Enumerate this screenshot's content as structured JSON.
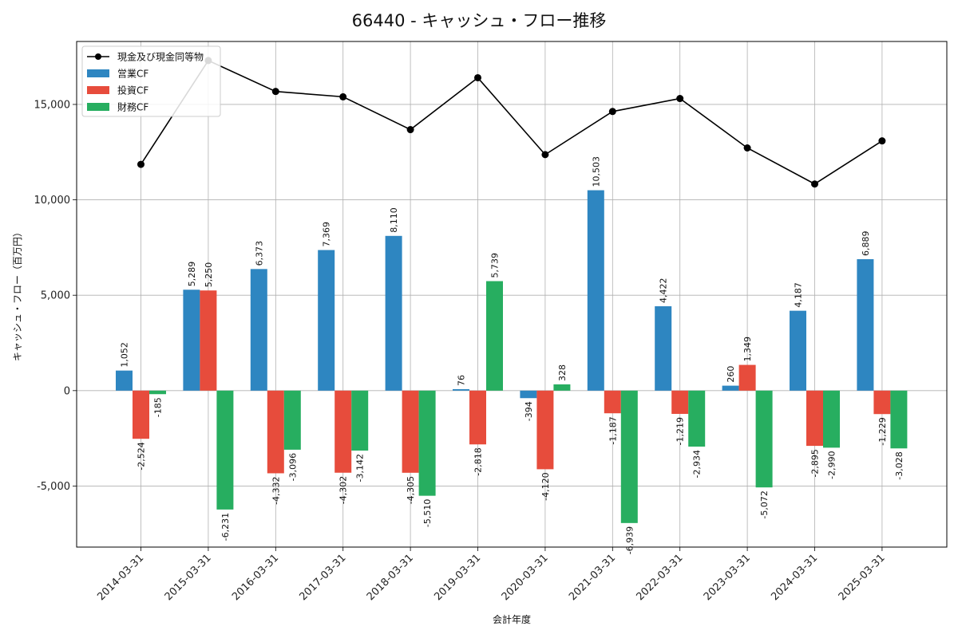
{
  "chart_data": {
    "type": "bar",
    "title": "66440 - キャッシュ・フロー推移",
    "xlabel": "会計年度",
    "ylabel": "キャッシュ・フロー（百万円）",
    "ylim": [
      -8200,
      18300
    ],
    "yticks": [
      -5000,
      0,
      5000,
      10000,
      15000
    ],
    "ytick_labels": [
      "-5,000",
      "0",
      "5,000",
      "10,000",
      "15,000"
    ],
    "grid": true,
    "legend_position": "top-left",
    "categories": [
      "2014-03-31",
      "2015-03-31",
      "2016-03-31",
      "2017-03-31",
      "2018-03-31",
      "2019-03-31",
      "2020-03-31",
      "2021-03-31",
      "2022-03-31",
      "2023-03-31",
      "2024-03-31",
      "2025-03-31"
    ],
    "series": [
      {
        "name": "営業CF",
        "type": "bar",
        "color": "#2e86c1",
        "values": [
          1052,
          5289,
          6373,
          7369,
          8110,
          76,
          -394,
          10503,
          4422,
          260,
          4187,
          6889
        ],
        "labels": [
          "1,052",
          "5,289",
          "6,373",
          "7,369",
          "8,110",
          "76",
          "-394",
          "10,503",
          "4,422",
          "260",
          "4,187",
          "6,889"
        ]
      },
      {
        "name": "投資CF",
        "type": "bar",
        "color": "#e74c3c",
        "values": [
          -2524,
          5250,
          -4332,
          -4302,
          -4305,
          -2818,
          -4120,
          -1187,
          -1219,
          1349,
          -2895,
          -1229
        ],
        "labels": [
          "-2,524",
          "5,250",
          "-4,332",
          "-4,302",
          "-4,305",
          "-2,818",
          "-4,120",
          "-1,187",
          "-1,219",
          "1,349",
          "-2,895",
          "-1,229"
        ]
      },
      {
        "name": "財務CF",
        "type": "bar",
        "color": "#27ae60",
        "values": [
          -185,
          -6231,
          -3096,
          -3142,
          -5510,
          5739,
          328,
          -6939,
          -2934,
          -5072,
          -2990,
          -3028
        ],
        "labels": [
          "-185",
          "-6,231",
          "-3,096",
          "-3,142",
          "-5,510",
          "5,739",
          "328",
          "-6,939",
          "-2,934",
          "-5,072",
          "-2,990",
          "-3,028"
        ]
      },
      {
        "name": "現金及び現金同等物",
        "type": "line",
        "color": "#000000",
        "values": [
          11860,
          17300,
          15680,
          15400,
          13680,
          16400,
          12370,
          14630,
          15310,
          12720,
          10830,
          13090
        ]
      }
    ]
  }
}
